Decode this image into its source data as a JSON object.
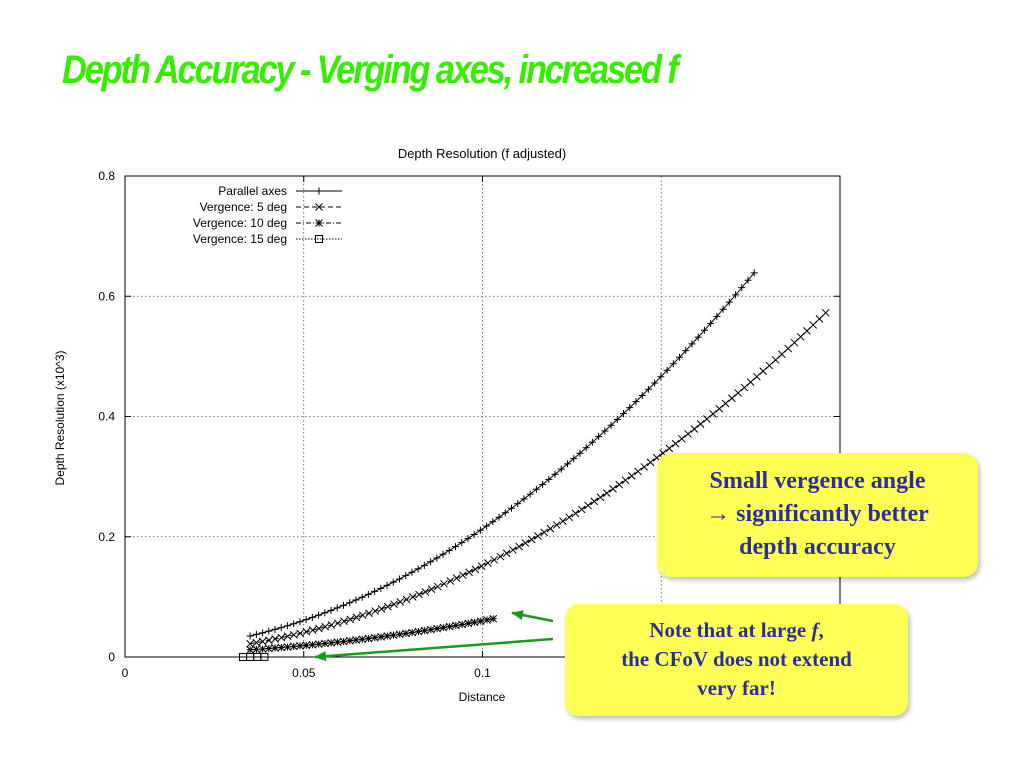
{
  "slide": {
    "title": "Depth Accuracy - Verging axes, increased f",
    "title_color": "#33ee00"
  },
  "callouts": {
    "bg_color": "#ffff55",
    "text_color": "#2e2e9a",
    "arrow_color": "#1a9a1a",
    "vergence": {
      "line1": "Small vergence angle",
      "line2": "→ significantly better",
      "line3": "depth accuracy"
    },
    "cfov": {
      "line1_prefix": "Note that at large ",
      "line1_var": "f",
      "line1_suffix": ",",
      "line2": "the CFoV does not extend",
      "line3": "very far!"
    }
  },
  "chart_data": {
    "type": "line",
    "title": "Depth Resolution (f adjusted)",
    "xlabel": "Distance",
    "ylabel": "Depth Resolution (x10^3)",
    "xlim": [
      0,
      0.2
    ],
    "ylim": [
      0,
      0.8
    ],
    "x_ticks": [
      "0",
      "0.05",
      "0.1"
    ],
    "x_tick_values": [
      0,
      0.05,
      0.1
    ],
    "y_ticks": [
      "0",
      "0.2",
      "0.4",
      "0.6",
      "0.8"
    ],
    "y_tick_values": [
      0,
      0.2,
      0.4,
      0.6,
      0.8
    ],
    "grid": true,
    "legend_position": "top-left",
    "series": [
      {
        "name": "Parallel axes",
        "marker": "plus",
        "line_style": "solid",
        "x_range": [
          0.035,
          0.176
        ],
        "y_at_x_start": 0.035,
        "y_scale": 20.3,
        "exponent": 2
      },
      {
        "name": "Vergence: 5 deg",
        "marker": "cross",
        "line_style": "dashed",
        "x_range": [
          0.035,
          0.196
        ],
        "y_at_x_start": 0.022,
        "y_scale": 14.8,
        "exponent": 2
      },
      {
        "name": "Vergence: 10 deg",
        "marker": "star",
        "line_style": "dashdot",
        "x_range": [
          0.035,
          0.103
        ],
        "y_at_x_start": 0.012,
        "y_scale": 5.5,
        "exponent": 2
      },
      {
        "name": "Vergence: 15 deg",
        "marker": "square",
        "line_style": "dotted",
        "x_range": [
          0.033,
          0.039
        ],
        "y_at_x_start": 0.0,
        "y_scale": 0.5,
        "exponent": 2
      }
    ]
  }
}
